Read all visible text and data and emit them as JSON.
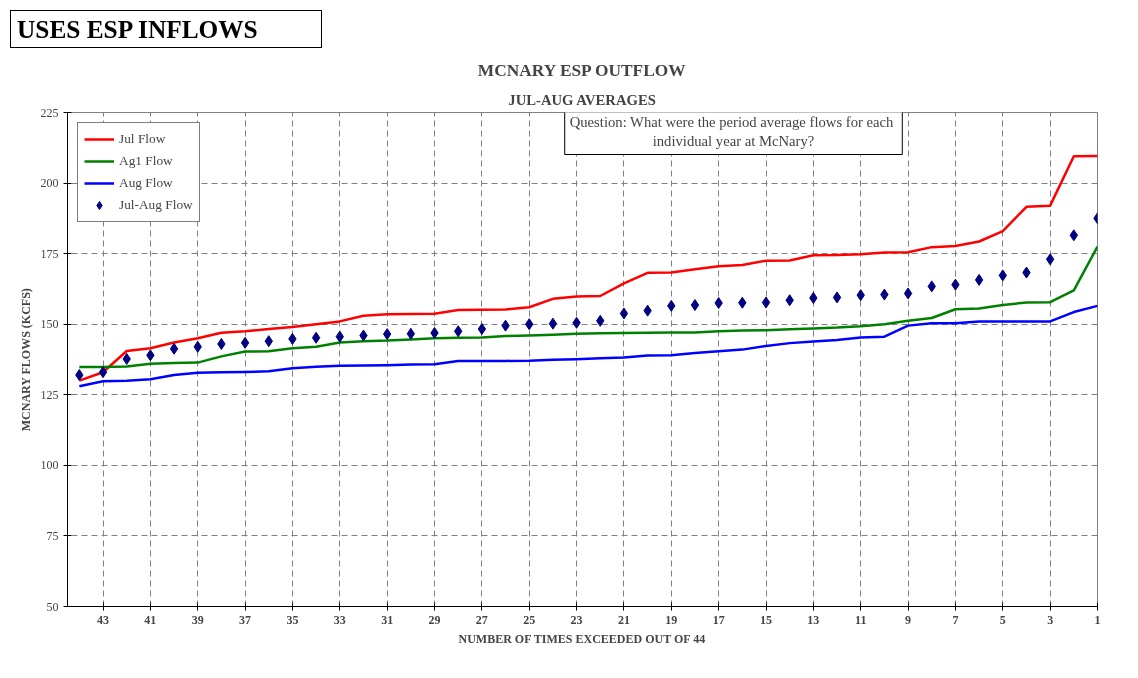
{
  "chart_data": {
    "type": "line",
    "title": "MCNARY ESP OUTFLOW",
    "subtitle": "JUL-AUG AVERAGES",
    "xlabel": "NUMBER OF TIMES EXCEEDED OUT OF 44",
    "ylabel": "MCNARY FLOWS (KCFS)",
    "annotations": [
      "USES ESP INFLOWS",
      "Question:  What were the period average flows for each\nindividual year at McNary?"
    ],
    "x": [
      44,
      43,
      42,
      41,
      40,
      39,
      38,
      37,
      36,
      35,
      34,
      33,
      32,
      31,
      30,
      29,
      28,
      27,
      26,
      25,
      24,
      23,
      22,
      21,
      20,
      19,
      18,
      17,
      16,
      15,
      14,
      13,
      12,
      11,
      10,
      9,
      8,
      7,
      6,
      5,
      4,
      3,
      2,
      1
    ],
    "series": [
      {
        "name": "Jul Flow",
        "color": "#ff0000",
        "values": [
          130,
          133,
          140.5,
          141.5,
          143.5,
          145,
          147,
          147.5,
          148.3,
          149,
          150,
          151,
          153,
          153.5,
          153.6,
          153.7,
          155,
          155.1,
          155.2,
          156,
          159,
          159.8,
          160,
          164.5,
          168.2,
          168.3,
          169.5,
          170.5,
          171,
          172.5,
          172.6,
          174.4,
          174.5,
          174.8,
          175.4,
          175.5,
          177.3,
          177.7,
          179.3,
          183,
          191.6,
          192,
          209.5,
          209.6
        ]
      },
      {
        "name": "Ag1 Flow",
        "color": "#008000",
        "values": [
          134.8,
          134.8,
          135,
          136,
          136.3,
          136.4,
          138.6,
          140.3,
          140.4,
          141.5,
          142,
          143.5,
          144,
          144.2,
          144.6,
          145,
          145.2,
          145.3,
          145.8,
          146,
          146.3,
          146.6,
          146.8,
          146.9,
          147,
          147.1,
          147.1,
          147.5,
          147.8,
          147.9,
          148.2,
          148.5,
          148.8,
          149.3,
          150,
          151.2,
          152.2,
          155.3,
          155.6,
          156.8,
          157.7,
          157.8,
          162,
          177.5
        ]
      },
      {
        "name": "Aug Flow",
        "color": "#0000ff",
        "values": [
          128,
          129.8,
          130,
          130.5,
          132,
          132.8,
          133,
          133.1,
          133.3,
          134.4,
          134.9,
          135.3,
          135.4,
          135.5,
          135.7,
          135.8,
          137,
          137,
          137,
          137.1,
          137.4,
          137.6,
          137.9,
          138.2,
          138.9,
          139,
          139.8,
          140.4,
          141,
          142.3,
          143.3,
          143.9,
          144.4,
          145.3,
          145.6,
          149.5,
          150.3,
          150.3,
          151,
          151,
          151,
          151,
          154.3,
          156.5
        ]
      },
      {
        "name": "Jul-Aug Flow",
        "type": "scatter",
        "marker": "diamond",
        "color": "#000080",
        "values": [
          132,
          133,
          137.7,
          139,
          141.3,
          142,
          143,
          143.4,
          144,
          144.8,
          145.2,
          145.6,
          146,
          146.5,
          146.6,
          146.9,
          147.5,
          148.3,
          149.5,
          150,
          150.2,
          150.5,
          151.2,
          153.8,
          154.8,
          156.5,
          156.8,
          157.5,
          157.6,
          157.7,
          158.5,
          159.3,
          159.5,
          160.3,
          160.5,
          160.9,
          163.4,
          164,
          165.7,
          167.3,
          168.3,
          173,
          181.5,
          187.5
        ]
      }
    ],
    "xlim": [
      44.5,
      1
    ],
    "xticks": [
      43,
      41,
      39,
      37,
      35,
      33,
      31,
      29,
      27,
      25,
      23,
      21,
      19,
      17,
      15,
      13,
      11,
      9,
      7,
      5,
      3,
      1
    ],
    "ylim": [
      50,
      225
    ],
    "yticks": [
      50,
      75,
      100,
      125,
      150,
      175,
      200,
      225
    ],
    "grid": true,
    "legend": "top left"
  }
}
